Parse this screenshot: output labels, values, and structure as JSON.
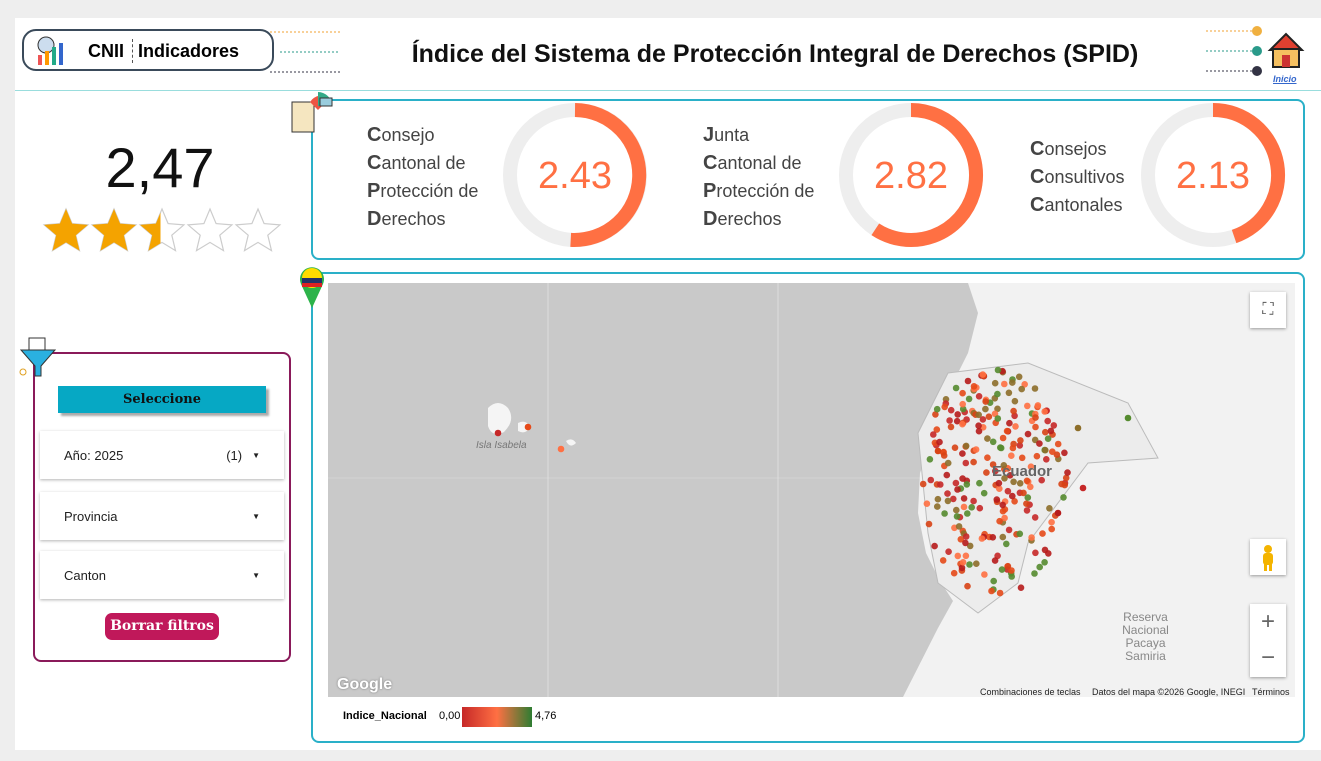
{
  "header": {
    "brand": "CNII",
    "section": "Indicadores",
    "title": "Índice del Sistema de Protección Integral de Derechos (SPID)",
    "home": "Inicio"
  },
  "score": {
    "value": 2.47,
    "label": "2,47"
  },
  "gauges": [
    {
      "lines": [
        "Consejo",
        "Cantonal de",
        "Protección de",
        "Derechos"
      ],
      "value": 2.43
    },
    {
      "lines": [
        "Junta",
        "Cantonal de",
        "Protección de",
        "Derechos"
      ],
      "value": 2.82
    },
    {
      "lines": [
        "Consejos",
        "Consultivos",
        "Cantonales"
      ],
      "value": 2.13
    }
  ],
  "filters": {
    "title": "Seleccione",
    "year": {
      "label": "Año",
      "value": "2025",
      "count": "(1)"
    },
    "province": "Provincia",
    "canton": "Canton",
    "clear": "Borrar filtros"
  },
  "map": {
    "labels": {
      "island": "Isla Isabela",
      "country": "Ecuador",
      "reserve": "Reserva Nacional Pacaya Samiria",
      "google": "Google",
      "shortcuts": "Combinaciones de teclas",
      "attribution": "Datos del mapa ©2026 Google, INEGI",
      "terms": "Términos"
    },
    "legend": {
      "name": "Indice_Nacional",
      "min": {
        "value": 0,
        "label": "0,00"
      },
      "max": {
        "value": 4.76,
        "label": "4,76"
      }
    }
  }
}
